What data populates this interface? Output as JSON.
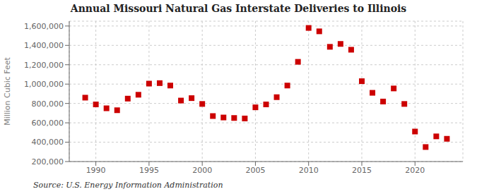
{
  "chart_data": {
    "type": "scatter",
    "title": "Annual Missouri Natural Gas Interstate Deliveries to Illinois",
    "ylabel": "Million Cubic Feet",
    "annotation": "Source: U.S. Energy Information Administration",
    "x": [
      1989,
      1990,
      1991,
      1992,
      1993,
      1994,
      1995,
      1996,
      1997,
      1998,
      1999,
      2000,
      2001,
      2002,
      2003,
      2004,
      2005,
      2006,
      2007,
      2008,
      2009,
      2010,
      2011,
      2012,
      2013,
      2014,
      2015,
      2016,
      2017,
      2018,
      2019,
      2020,
      2021,
      2022,
      2023
    ],
    "values": [
      860000,
      790000,
      750000,
      730000,
      850000,
      890000,
      1005000,
      1010000,
      985000,
      830000,
      855000,
      795000,
      670000,
      655000,
      650000,
      645000,
      760000,
      790000,
      865000,
      985000,
      1230000,
      1580000,
      1545000,
      1385000,
      1415000,
      1355000,
      1030000,
      910000,
      820000,
      955000,
      795000,
      510000,
      350000,
      460000,
      435000
    ],
    "color": "#cc0000",
    "marker": "square",
    "xlim": [
      1987.5,
      2024.5
    ],
    "xticks": [
      1990,
      1995,
      2000,
      2005,
      2010,
      2015,
      2020
    ],
    "ylim": [
      200000,
      1650000
    ],
    "yticks": [
      {
        "value": 200000,
        "label": "200,000"
      },
      {
        "value": 400000,
        "label": "400,000"
      },
      {
        "value": 600000,
        "label": "600,000"
      },
      {
        "value": 800000,
        "label": "800,000"
      },
      {
        "value": 1000000,
        "label": "1,000,000"
      },
      {
        "value": 1200000,
        "label": "1,200,000"
      },
      {
        "value": 1400000,
        "label": "1,400,000"
      },
      {
        "value": 1600000,
        "label": "1,600,000"
      }
    ],
    "grid": true
  }
}
